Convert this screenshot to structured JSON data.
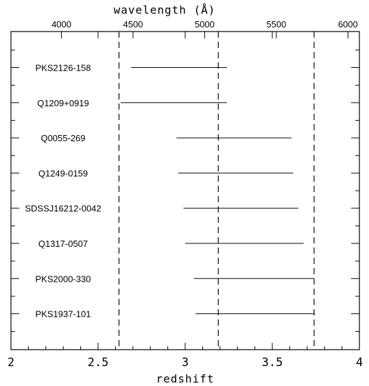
{
  "chart_data": {
    "type": "range-bar",
    "xlabel": "redshift",
    "x2label": "wavelength (Å)",
    "xlim": [
      2,
      4
    ],
    "x_ticks": [
      "2",
      "2.5",
      "3",
      "3.5",
      "4"
    ],
    "x2_ticks": [
      "4000",
      "4500",
      "5000",
      "5500",
      "6000"
    ],
    "x2_tick_redshifts": [
      2.2895,
      2.7007,
      3.1119,
      3.523,
      3.9342
    ],
    "reference_lines_redshift": [
      2.62,
      3.19,
      3.74
    ],
    "categories": [
      "PKS2126-158",
      "Q1209+0919",
      "Q0055-269",
      "Q1249-0159",
      "SDSSJ16212-0042",
      "Q1317-0507",
      "PKS2000-330",
      "PKS1937-101"
    ],
    "ranges": [
      [
        2.69,
        3.24
      ],
      [
        2.63,
        3.24
      ],
      [
        2.95,
        3.61
      ],
      [
        2.96,
        3.62
      ],
      [
        2.99,
        3.65
      ],
      [
        3.0,
        3.68
      ],
      [
        3.05,
        3.74
      ],
      [
        3.06,
        3.74
      ]
    ],
    "grid": false,
    "legend": "none"
  }
}
